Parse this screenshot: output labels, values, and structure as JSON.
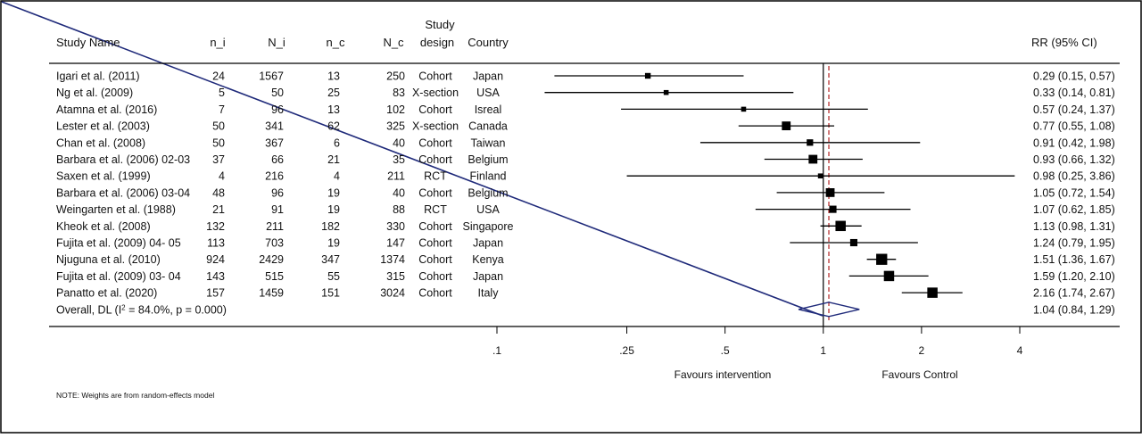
{
  "chart_data": {
    "type": "forest",
    "columns": {
      "study": "Study Name",
      "n_i": "n_i",
      "N_i": "N_i",
      "n_c": "n_c",
      "N_c": "N_c",
      "design": "Study design",
      "country": "Country",
      "rr": "RR (95% CI)"
    },
    "studies": [
      {
        "name": "Igari et al. (2011)",
        "n_i": "24",
        "N_i": "1567",
        "n_c": "13",
        "N_c": "250",
        "design": "Cohort",
        "country": "Japan",
        "rr": 0.29,
        "lo": 0.15,
        "hi": 0.57,
        "rr_text": "0.29 (0.15, 0.57)",
        "weight": 2
      },
      {
        "name": "Ng et al. (2009)",
        "n_i": "5",
        "N_i": "50",
        "n_c": "25",
        "N_c": "83",
        "design": "X-section",
        "country": "USA",
        "rr": 0.33,
        "lo": 0.14,
        "hi": 0.81,
        "rr_text": "0.33 (0.14, 0.81)",
        "weight": 1.5
      },
      {
        "name": "Atamna  et al. (2016)",
        "n_i": "7",
        "N_i": "96",
        "n_c": "13",
        "N_c": "102",
        "design": "Cohort",
        "country": "Isreal",
        "rr": 0.57,
        "lo": 0.24,
        "hi": 1.37,
        "rr_text": "0.57 (0.24, 1.37)",
        "weight": 1.5
      },
      {
        "name": "Lester et al. (2003)",
        "n_i": "50",
        "N_i": "341",
        "n_c": "62",
        "N_c": "325",
        "design": "X-section",
        "country": "Canada",
        "rr": 0.77,
        "lo": 0.55,
        "hi": 1.08,
        "rr_text": "0.77 (0.55, 1.08)",
        "weight": 4
      },
      {
        "name": "Chan et al. (2008)",
        "n_i": "50",
        "N_i": "367",
        "n_c": "6",
        "N_c": "40",
        "design": "Cohort",
        "country": "Taiwan",
        "rr": 0.91,
        "lo": 0.42,
        "hi": 1.98,
        "rr_text": "0.91 (0.42, 1.98)",
        "weight": 2.5
      },
      {
        "name": "Barbara et al. (2006) 02-03",
        "n_i": "37",
        "N_i": "66",
        "n_c": "21",
        "N_c": "35",
        "design": "Cohort",
        "country": "Belgium",
        "rr": 0.93,
        "lo": 0.66,
        "hi": 1.32,
        "rr_text": "0.93 (0.66, 1.32)",
        "weight": 4
      },
      {
        "name": "Saxen et al. (1999)",
        "n_i": "4",
        "N_i": "216",
        "n_c": "4",
        "N_c": "211",
        "design": "RCT",
        "country": "Finland",
        "rr": 0.98,
        "lo": 0.25,
        "hi": 3.86,
        "rr_text": "0.98 (0.25, 3.86)",
        "weight": 1.5
      },
      {
        "name": "Barbara et al. (2006) 03-04",
        "n_i": "48",
        "N_i": "96",
        "n_c": "19",
        "N_c": "40",
        "design": "Cohort",
        "country": "Belgium",
        "rr": 1.05,
        "lo": 0.72,
        "hi": 1.54,
        "rr_text": "1.05 (0.72, 1.54)",
        "weight": 4
      },
      {
        "name": "Weingarten et al. (1988)",
        "n_i": "21",
        "N_i": "91",
        "n_c": "19",
        "N_c": "88",
        "design": "RCT",
        "country": "USA",
        "rr": 1.07,
        "lo": 0.62,
        "hi": 1.85,
        "rr_text": "1.07 (0.62, 1.85)",
        "weight": 3
      },
      {
        "name": "Kheok et al. (2008)",
        "n_i": "132",
        "N_i": "211",
        "n_c": "182",
        "N_c": "330",
        "design": "Cohort",
        "country": "Singapore",
        "rr": 1.13,
        "lo": 0.98,
        "hi": 1.31,
        "rr_text": "1.13 (0.98, 1.31)",
        "weight": 5
      },
      {
        "name": "Fujita et al. (2009) 04- 05",
        "n_i": "113",
        "N_i": "703",
        "n_c": "19",
        "N_c": "147",
        "design": "Cohort",
        "country": "Japan",
        "rr": 1.24,
        "lo": 0.79,
        "hi": 1.95,
        "rr_text": "1.24 (0.79, 1.95)",
        "weight": 3
      },
      {
        "name": "Njuguna et al. (2010)",
        "n_i": "924",
        "N_i": "2429",
        "n_c": "347",
        "N_c": "1374",
        "design": "Cohort",
        "country": "Kenya",
        "rr": 1.51,
        "lo": 1.36,
        "hi": 1.67,
        "rr_text": "1.51 (1.36, 1.67)",
        "weight": 5.5
      },
      {
        "name": "Fujita et al. (2009) 03- 04",
        "n_i": "143",
        "N_i": "515",
        "n_c": "55",
        "N_c": "315",
        "design": "Cohort",
        "country": "Japan",
        "rr": 1.59,
        "lo": 1.2,
        "hi": 2.1,
        "rr_text": "1.59 (1.20, 2.10)",
        "weight": 5
      },
      {
        "name": "Panatto et al. (2020)",
        "n_i": "157",
        "N_i": "1459",
        "n_c": "151",
        "N_c": "3024",
        "design": "Cohort",
        "country": "Italy",
        "rr": 2.16,
        "lo": 1.74,
        "hi": 2.67,
        "rr_text": "2.16 (1.74, 2.67)",
        "weight": 5
      }
    ],
    "overall": {
      "label_pre": "Overall, DL (I",
      "label_sup": "2",
      "label_post": " = 84.0%, p = 0.000)",
      "rr": 1.04,
      "lo": 0.84,
      "hi": 1.29,
      "rr_text": "1.04 (0.84, 1.29)"
    },
    "x_scale": "log",
    "xlim": [
      0.1,
      4
    ],
    "ticks": [
      {
        "value": 0.1,
        "label": ".1"
      },
      {
        "value": 0.25,
        "label": ".25"
      },
      {
        "value": 0.5,
        "label": ".5"
      },
      {
        "value": 1,
        "label": "1"
      },
      {
        "value": 2,
        "label": "2"
      },
      {
        "value": 4,
        "label": "4"
      }
    ],
    "null_line": 1,
    "overall_line": 1.04,
    "favours_left": "Favours intervention",
    "favours_right": "Favours Control",
    "note": "NOTE: Weights are from random-effects model",
    "colors": {
      "marker": "#000000",
      "diamond": "#1f2a7a",
      "overall_line": "#b22222",
      "frame": "#000000"
    }
  }
}
